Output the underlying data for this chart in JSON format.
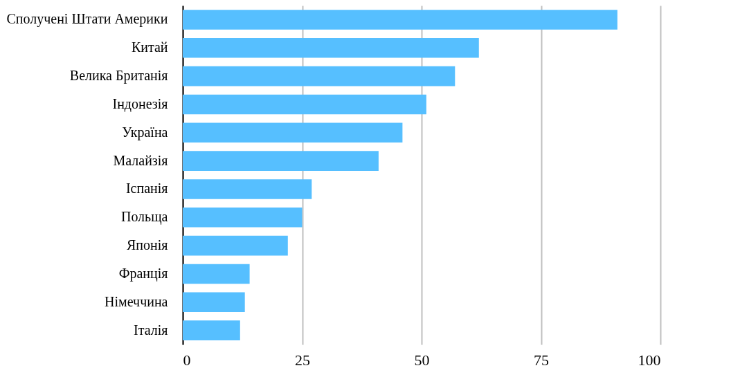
{
  "chart_data": {
    "type": "bar",
    "orientation": "horizontal",
    "categories": [
      "Сполучені Штати Америки",
      "Китай",
      "Велика Британія",
      "Індонезія",
      "Україна",
      "Малайзія",
      "Іспанія",
      "Польща",
      "Японія",
      "Франція",
      "Німеччина",
      "Італія"
    ],
    "values": [
      91,
      62,
      57,
      51,
      46,
      41,
      27,
      25,
      22,
      14,
      13,
      12
    ],
    "color": "#56bfff",
    "xlim": [
      0,
      100
    ],
    "xticks": [
      0,
      25,
      50,
      75,
      100
    ],
    "grid": "x"
  }
}
